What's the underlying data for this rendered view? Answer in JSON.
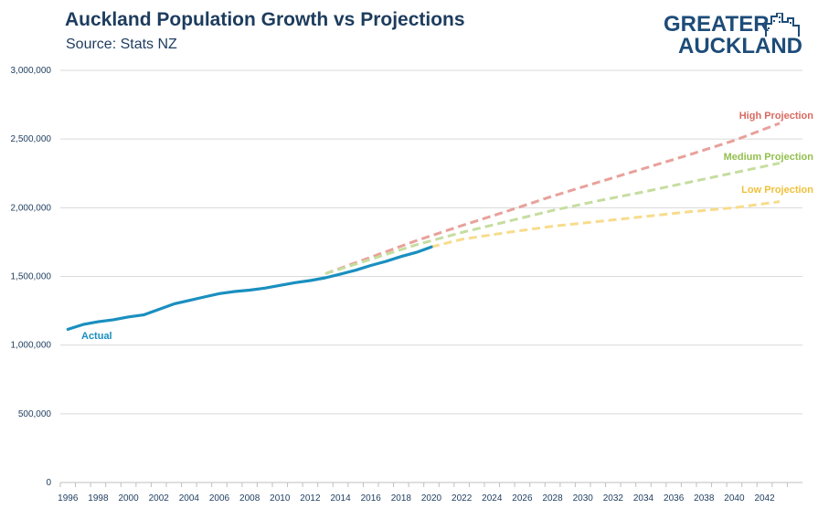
{
  "header": {
    "title": "Auckland Population Growth vs Projections",
    "subtitle": "Source: Stats NZ"
  },
  "logo": {
    "line1": "GREATER",
    "line2": "AUCKLAND",
    "icon": "city-buildings-icon",
    "color": "#1d4c78"
  },
  "chart_data": {
    "type": "line",
    "title": "Auckland Population Growth vs Projections",
    "subtitle": "Source: Stats NZ",
    "xlabel": "",
    "ylabel": "",
    "xlim": [
      1995.5,
      2044.5
    ],
    "ylim": [
      0,
      3000000
    ],
    "grid": true,
    "x_ticks": [
      1996,
      1998,
      2000,
      2002,
      2004,
      2006,
      2008,
      2010,
      2012,
      2014,
      2016,
      2018,
      2020,
      2022,
      2024,
      2026,
      2028,
      2030,
      2032,
      2034,
      2036,
      2038,
      2040,
      2042
    ],
    "y_ticks": [
      0,
      500000,
      1000000,
      1500000,
      2000000,
      2500000,
      3000000
    ],
    "y_tick_labels": [
      "0",
      "500,000",
      "1,000,000",
      "1,500,000",
      "2,000,000",
      "2,500,000",
      "3,000,000"
    ],
    "series": [
      {
        "name": "Actual",
        "color": "#1a8fbf",
        "dashed": false,
        "x": [
          1996,
          1997,
          1998,
          1999,
          2000,
          2001,
          2002,
          2003,
          2004,
          2005,
          2006,
          2007,
          2008,
          2009,
          2010,
          2011,
          2012,
          2013,
          2014,
          2015,
          2016,
          2017,
          2018,
          2019,
          2020
        ],
        "y": [
          1115000,
          1150000,
          1170000,
          1185000,
          1205000,
          1220000,
          1260000,
          1300000,
          1325000,
          1350000,
          1375000,
          1390000,
          1400000,
          1415000,
          1435000,
          1455000,
          1470000,
          1490000,
          1517000,
          1545000,
          1580000,
          1610000,
          1645000,
          1675000,
          1715000
        ]
      },
      {
        "name": "High Projection",
        "color": "#e8a19b",
        "label_color": "#d96a60",
        "dashed": true,
        "x": [
          2013,
          2016,
          2019,
          2022,
          2025,
          2028,
          2031,
          2034,
          2037,
          2040,
          2043
        ],
        "y": [
          1520000,
          1640000,
          1760000,
          1870000,
          1975000,
          2085000,
          2185000,
          2285000,
          2385000,
          2490000,
          2615000
        ]
      },
      {
        "name": "Medium Projection",
        "color": "#c6dda0",
        "label_color": "#93bf4f",
        "dashed": true,
        "x": [
          2013,
          2016,
          2019,
          2022,
          2025,
          2028,
          2031,
          2034,
          2037,
          2040,
          2043
        ],
        "y": [
          1520000,
          1625000,
          1730000,
          1820000,
          1900000,
          1980000,
          2050000,
          2115000,
          2185000,
          2255000,
          2325000
        ]
      },
      {
        "name": "Low Projection",
        "color": "#f7dc8d",
        "label_color": "#efc13a",
        "dashed": true,
        "x": [
          2020,
          2022,
          2025,
          2028,
          2031,
          2034,
          2037,
          2040,
          2043
        ],
        "y": [
          1715000,
          1770000,
          1820000,
          1865000,
          1900000,
          1935000,
          1970000,
          2000000,
          2045000
        ]
      }
    ]
  }
}
